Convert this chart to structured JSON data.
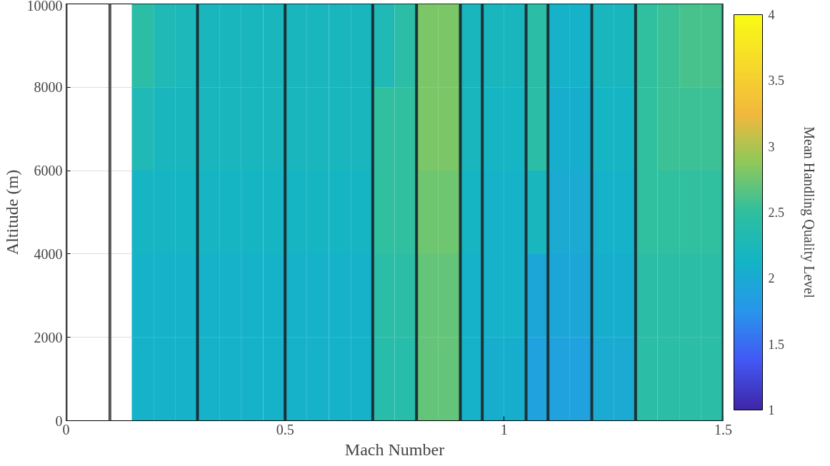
{
  "chart_data": {
    "type": "heatmap",
    "xlabel": "Mach Number",
    "ylabel": "Altitude (m)",
    "clabel": "Mean Handling Quality Level",
    "x": [
      0.025,
      0.075,
      0.125,
      0.175,
      0.225,
      0.275,
      0.325,
      0.375,
      0.425,
      0.475,
      0.525,
      0.575,
      0.625,
      0.675,
      0.725,
      0.775,
      0.825,
      0.875,
      0.925,
      0.975,
      1.025,
      1.075,
      1.125,
      1.175,
      1.225,
      1.275,
      1.325,
      1.375,
      1.425,
      1.475
    ],
    "y": [
      9000,
      7000,
      5000,
      3000,
      1000
    ],
    "cells": [
      [
        null,
        null,
        null,
        2.45,
        2.3,
        2.25,
        2.2,
        2.2,
        2.2,
        2.2,
        2.2,
        2.2,
        2.2,
        2.2,
        2.3,
        2.45,
        2.8,
        2.8,
        2.2,
        2.2,
        2.2,
        2.45,
        2.1,
        2.1,
        2.2,
        2.2,
        2.5,
        2.55,
        2.6,
        2.6
      ],
      [
        null,
        null,
        null,
        2.3,
        2.2,
        2.2,
        2.2,
        2.2,
        2.2,
        2.2,
        2.2,
        2.2,
        2.2,
        2.2,
        2.5,
        2.5,
        2.8,
        2.8,
        2.2,
        2.15,
        2.15,
        2.45,
        2.05,
        2.05,
        2.15,
        2.15,
        2.5,
        2.55,
        2.55,
        2.55
      ],
      [
        null,
        null,
        null,
        2.15,
        2.15,
        2.15,
        2.15,
        2.15,
        2.15,
        2.15,
        2.15,
        2.15,
        2.15,
        2.15,
        2.5,
        2.5,
        2.75,
        2.75,
        2.15,
        2.1,
        2.1,
        2.2,
        2.0,
        2.0,
        2.1,
        2.1,
        2.5,
        2.5,
        2.5,
        2.5
      ],
      [
        null,
        null,
        null,
        2.1,
        2.1,
        2.1,
        2.1,
        2.1,
        2.1,
        2.1,
        2.1,
        2.1,
        2.1,
        2.1,
        2.45,
        2.45,
        2.7,
        2.7,
        2.1,
        2.1,
        2.1,
        1.95,
        1.95,
        1.95,
        2.05,
        2.05,
        2.45,
        2.45,
        2.45,
        2.45
      ],
      [
        null,
        null,
        null,
        2.1,
        2.1,
        2.1,
        2.1,
        2.1,
        2.1,
        2.1,
        2.1,
        2.1,
        2.1,
        2.1,
        2.4,
        2.4,
        2.7,
        2.7,
        2.1,
        2.05,
        2.05,
        1.9,
        1.9,
        1.9,
        2.0,
        2.0,
        2.45,
        2.45,
        2.45,
        2.45
      ]
    ],
    "xlim": [
      0,
      1.5
    ],
    "xticks": [
      0,
      0.5,
      1,
      1.5
    ],
    "ylim": [
      0,
      10000
    ],
    "yticks": [
      0,
      2000,
      4000,
      6000,
      8000,
      10000
    ],
    "clim": [
      1,
      4
    ],
    "cticks": [
      1,
      1.5,
      2,
      2.5,
      3,
      3.5,
      4
    ],
    "grid": "y",
    "ref_lines": [
      {
        "axis": "x",
        "value": 0,
        "color": "#555555"
      },
      {
        "axis": "x",
        "value": 0.1,
        "color": "#555555"
      },
      {
        "axis": "x",
        "value": 0.3,
        "color": "#1a3338"
      },
      {
        "axis": "x",
        "value": 0.5,
        "color": "#1a3338"
      },
      {
        "axis": "x",
        "value": 0.7,
        "color": "#1a3338"
      },
      {
        "axis": "x",
        "value": 0.8,
        "color": "#1a3338"
      },
      {
        "axis": "x",
        "value": 0.9,
        "color": "#1a3338"
      },
      {
        "axis": "x",
        "value": 0.95,
        "color": "#1a3338"
      },
      {
        "axis": "x",
        "value": 1.05,
        "color": "#1a3338"
      },
      {
        "axis": "x",
        "value": 1.1,
        "color": "#1a3338"
      },
      {
        "axis": "x",
        "value": 1.2,
        "color": "#1a3338"
      },
      {
        "axis": "x",
        "value": 1.3,
        "color": "#1a3338"
      },
      {
        "axis": "x",
        "value": 1.5,
        "color": "#1a3338"
      }
    ]
  }
}
